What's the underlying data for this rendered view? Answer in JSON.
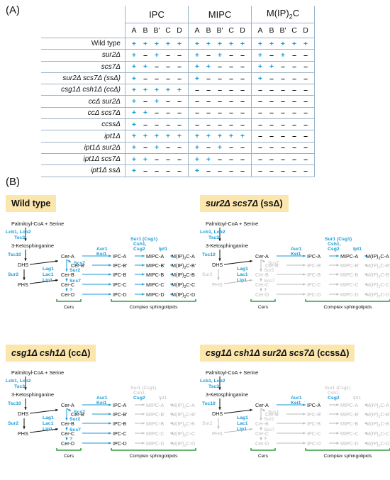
{
  "panel_a_label": "(A)",
  "panel_b_label": "(B)",
  "table": {
    "groups": [
      "IPC",
      "MIPC",
      "M(IP)2C"
    ],
    "subcolumns": [
      "A",
      "B",
      "B'",
      "C",
      "D"
    ],
    "rows": [
      {
        "genotype": "Wild type",
        "values": [
          "+",
          "+",
          "+",
          "+",
          "+",
          "+",
          "+",
          "+",
          "+",
          "+",
          "+",
          "+",
          "+",
          "+",
          "+"
        ]
      },
      {
        "genotype": "sur2Δ",
        "values": [
          "+",
          "–",
          "+",
          "–",
          "–",
          "+",
          "–",
          "+",
          "–",
          "–",
          "+",
          "–",
          "+",
          "–",
          "–"
        ]
      },
      {
        "genotype": "scs7Δ",
        "values": [
          "+",
          "+",
          "–",
          "–",
          "–",
          "+",
          "+",
          "–",
          "–",
          "–",
          "+",
          "+",
          "–",
          "–",
          "–"
        ]
      },
      {
        "genotype": "sur2Δ scs7Δ (ssΔ)",
        "values": [
          "+",
          "–",
          "–",
          "–",
          "–",
          "+",
          "–",
          "–",
          "–",
          "–",
          "+",
          "–",
          "–",
          "–",
          "–"
        ]
      },
      {
        "genotype": "csg1Δ csh1Δ (ccΔ)",
        "values": [
          "+",
          "+",
          "+",
          "+",
          "+",
          "–",
          "–",
          "–",
          "–",
          "–",
          "–",
          "–",
          "–",
          "–",
          "–"
        ]
      },
      {
        "genotype": "ccΔ sur2Δ",
        "values": [
          "+",
          "–",
          "+",
          "–",
          "–",
          "–",
          "–",
          "–",
          "–",
          "–",
          "–",
          "–",
          "–",
          "–",
          "–"
        ]
      },
      {
        "genotype": "ccΔ scs7Δ",
        "values": [
          "+",
          "+",
          "–",
          "–",
          "–",
          "–",
          "–",
          "–",
          "–",
          "–",
          "–",
          "–",
          "–",
          "–",
          "–"
        ]
      },
      {
        "genotype": "ccssΔ",
        "values": [
          "+",
          "–",
          "–",
          "–",
          "–",
          "–",
          "–",
          "–",
          "–",
          "–",
          "–",
          "–",
          "–",
          "–",
          "–"
        ]
      },
      {
        "genotype": "ipt1Δ",
        "values": [
          "+",
          "+",
          "+",
          "+",
          "+",
          "+",
          "+",
          "+",
          "+",
          "+",
          "–",
          "–",
          "–",
          "–",
          "–"
        ]
      },
      {
        "genotype": "ipt1Δ sur2Δ",
        "values": [
          "+",
          "–",
          "+",
          "–",
          "–",
          "+",
          "–",
          "+",
          "–",
          "–",
          "–",
          "–",
          "–",
          "–",
          "–"
        ]
      },
      {
        "genotype": "ipt1Δ scs7Δ",
        "values": [
          "+",
          "+",
          "–",
          "–",
          "–",
          "+",
          "+",
          "–",
          "–",
          "–",
          "–",
          "–",
          "–",
          "–",
          "–"
        ]
      },
      {
        "genotype": "ipt1Δ ssΔ",
        "values": [
          "+",
          "–",
          "–",
          "–",
          "–",
          "+",
          "–",
          "–",
          "–",
          "–",
          "–",
          "–",
          "–",
          "–",
          "–"
        ]
      }
    ]
  },
  "panels": [
    {
      "title_main": "Wild type",
      "title_italic": "",
      "title_suffix": ""
    },
    {
      "title_main": "",
      "title_italic": "sur2Δ scs7Δ",
      "title_suffix": " (ssΔ)"
    },
    {
      "title_main": "",
      "title_italic": "csg1Δ csh1Δ",
      "title_suffix": " (ccΔ)"
    },
    {
      "title_main": "",
      "title_italic": "csg1Δ csh1Δ sur2Δ scs7Δ",
      "title_suffix": " (ccssΔ)"
    }
  ],
  "pathway": {
    "start": "Palmitoyl-CoA + Serine",
    "enz1": [
      "Lcb1, Lcb2",
      "Tsc3"
    ],
    "ketosph": "3-Ketosphinganine",
    "enz2": "Tsc10",
    "dhs": "DHS",
    "phs": "PHS",
    "sur2": "Sur2",
    "cers_enz": [
      "Lag1",
      "Lac1",
      "Lip1"
    ],
    "scs7": "Scs7",
    "q": "?",
    "cer": [
      "Cer-A",
      "Cer-B'",
      "Cer-B",
      "Cer-C",
      "Cer-D"
    ],
    "aur": [
      "Aur1",
      "Kei1"
    ],
    "ipc": [
      "IPC-A",
      "IPC-B'",
      "IPC-B",
      "IPC-C",
      "IPC-D"
    ],
    "sur1": [
      "Sur1 (Csg1)",
      "Csh1,",
      "Csg2"
    ],
    "mipc": [
      "MIPC-A",
      "MIPC-B'",
      "MIPC-B",
      "MIPC-C",
      "MIPC-D"
    ],
    "ipt1": "Ipt1",
    "m2": [
      "M(IP)2C-A",
      "M(IP)2C-B'",
      "M(IP)2C-B",
      "M(IP)2C-C",
      "M(IP)2C-D"
    ],
    "cers_label": "Cers",
    "complex_label": "Complex sphingolipids"
  }
}
